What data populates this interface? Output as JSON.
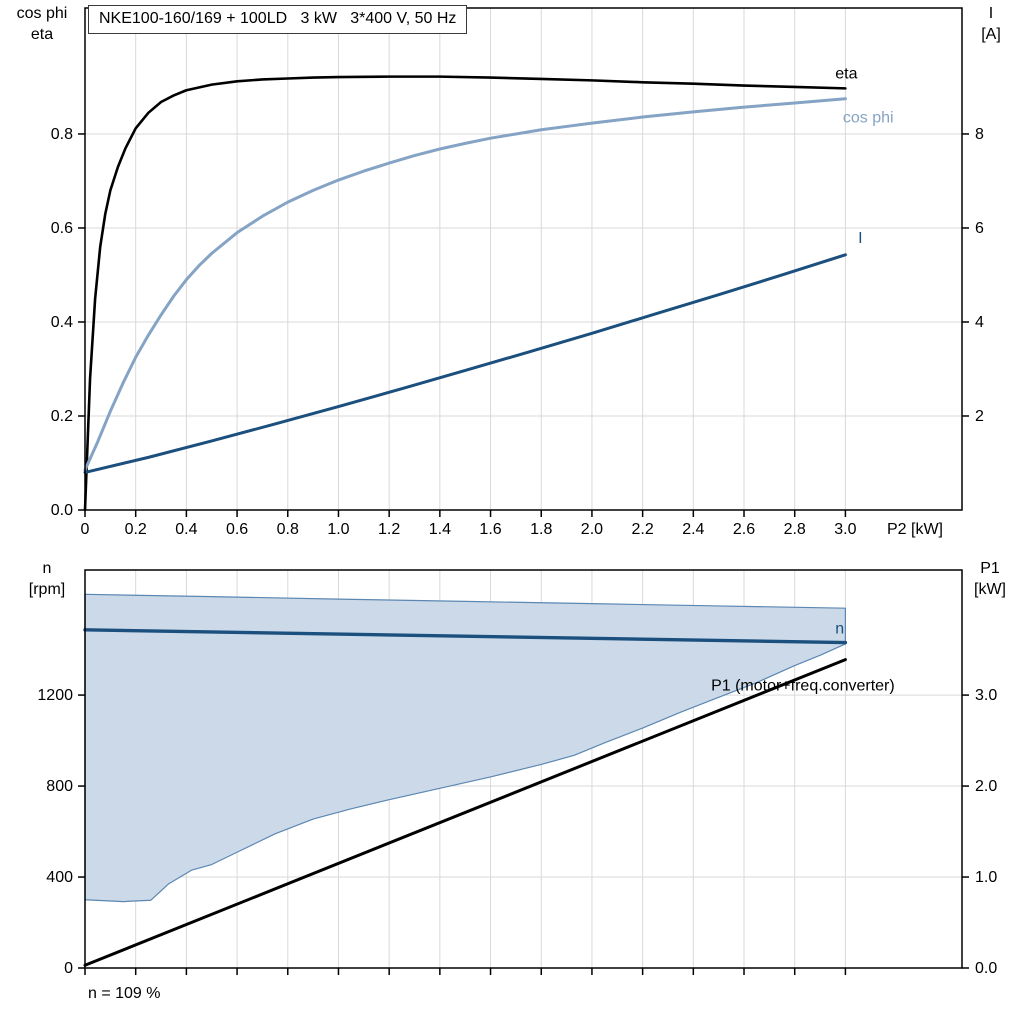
{
  "chart_data": [
    {
      "type": "line",
      "title": "NKE100-160/169 + 100LD   3 kW   3*400 V, 50 Hz",
      "x_axis": {
        "title": "P2 [kW]",
        "min": 0,
        "max": 3.46,
        "ticks": [
          0,
          0.2,
          0.4,
          0.6,
          0.8,
          1.0,
          1.2,
          1.4,
          1.6,
          1.8,
          2.0,
          2.2,
          2.4,
          2.6,
          2.8,
          3.0
        ],
        "labels": [
          "0",
          "0.2",
          "0.4",
          "0.6",
          "0.8",
          "1.0",
          "1.2",
          "1.4",
          "1.6",
          "1.8",
          "2.0",
          "2.2",
          "2.4",
          "2.6",
          "2.8",
          "3.0"
        ]
      },
      "left_axis": {
        "label_lines": [
          "cos phi",
          "eta"
        ],
        "min": 0,
        "max": 1.068,
        "ticks": [
          0,
          0.2,
          0.4,
          0.6,
          0.8
        ],
        "labels": [
          "0.0",
          "0.2",
          "0.4",
          "0.6",
          "0.8"
        ]
      },
      "right_axis": {
        "label_lines": [
          "I",
          "[A]"
        ],
        "min": 0,
        "max": 10.68,
        "ticks": [
          2,
          4,
          6,
          8
        ],
        "labels": [
          "2",
          "4",
          "6",
          "8"
        ]
      },
      "grid": true,
      "series": [
        {
          "name": "eta",
          "color": "#000000",
          "width": 2.6,
          "axis": "left",
          "points": [
            [
              0,
              0
            ],
            [
              0.02,
              0.28
            ],
            [
              0.04,
              0.45
            ],
            [
              0.06,
              0.56
            ],
            [
              0.08,
              0.63
            ],
            [
              0.1,
              0.68
            ],
            [
              0.13,
              0.73
            ],
            [
              0.16,
              0.77
            ],
            [
              0.2,
              0.812
            ],
            [
              0.25,
              0.845
            ],
            [
              0.3,
              0.868
            ],
            [
              0.35,
              0.882
            ],
            [
              0.4,
              0.893
            ],
            [
              0.5,
              0.905
            ],
            [
              0.6,
              0.912
            ],
            [
              0.7,
              0.916
            ],
            [
              0.8,
              0.918
            ],
            [
              0.9,
              0.92
            ],
            [
              1.0,
              0.921
            ],
            [
              1.2,
              0.922
            ],
            [
              1.4,
              0.922
            ],
            [
              1.6,
              0.92
            ],
            [
              1.8,
              0.917
            ],
            [
              2.0,
              0.914
            ],
            [
              2.2,
              0.91
            ],
            [
              2.4,
              0.907
            ],
            [
              2.6,
              0.903
            ],
            [
              2.8,
              0.9
            ],
            [
              3.0,
              0.897
            ]
          ]
        },
        {
          "name": "cos phi",
          "color": "#85a3c4",
          "width": 3,
          "axis": "left",
          "points": [
            [
              0,
              0.085
            ],
            [
              0.05,
              0.145
            ],
            [
              0.1,
              0.21
            ],
            [
              0.15,
              0.27
            ],
            [
              0.2,
              0.325
            ],
            [
              0.25,
              0.372
            ],
            [
              0.3,
              0.415
            ],
            [
              0.35,
              0.455
            ],
            [
              0.4,
              0.49
            ],
            [
              0.45,
              0.52
            ],
            [
              0.5,
              0.546
            ],
            [
              0.6,
              0.59
            ],
            [
              0.7,
              0.625
            ],
            [
              0.8,
              0.655
            ],
            [
              0.9,
              0.68
            ],
            [
              1.0,
              0.702
            ],
            [
              1.1,
              0.721
            ],
            [
              1.2,
              0.738
            ],
            [
              1.3,
              0.754
            ],
            [
              1.4,
              0.768
            ],
            [
              1.5,
              0.78
            ],
            [
              1.6,
              0.791
            ],
            [
              1.7,
              0.8
            ],
            [
              1.8,
              0.809
            ],
            [
              1.9,
              0.816
            ],
            [
              2.0,
              0.823
            ],
            [
              2.2,
              0.836
            ],
            [
              2.4,
              0.847
            ],
            [
              2.6,
              0.857
            ],
            [
              2.8,
              0.866
            ],
            [
              3.0,
              0.875
            ]
          ]
        },
        {
          "name": "I",
          "color": "#1b4f7e",
          "width": 3,
          "axis": "right",
          "points": [
            [
              0,
              0.8
            ],
            [
              0.25,
              1.12
            ],
            [
              0.5,
              1.47
            ],
            [
              0.75,
              1.83
            ],
            [
              1.0,
              2.2
            ],
            [
              1.25,
              2.58
            ],
            [
              1.5,
              2.97
            ],
            [
              1.75,
              3.36
            ],
            [
              2.0,
              3.76
            ],
            [
              2.25,
              4.17
            ],
            [
              2.5,
              4.58
            ],
            [
              2.75,
              5.0
            ],
            [
              3.0,
              5.43
            ]
          ]
        }
      ],
      "annotations": [
        {
          "text": "eta",
          "x": 2.96,
          "y": 0.918,
          "axis": "left",
          "color": "#000000"
        },
        {
          "text": "cos phi",
          "x": 2.99,
          "y": 0.824,
          "axis": "left",
          "color": "#85a3c4"
        },
        {
          "text": "I",
          "x": 3.05,
          "y": 0.568,
          "axis": "left",
          "color": "#1b4f7e"
        }
      ]
    },
    {
      "type": "line",
      "note": "n = 109 %",
      "x_axis": {
        "title": "",
        "min": 0,
        "max": 3.46,
        "ticks": [
          0,
          0.2,
          0.4,
          0.6,
          0.8,
          1.0,
          1.2,
          1.4,
          1.6,
          1.8,
          2.0,
          2.2,
          2.4,
          2.6,
          2.8,
          3.0
        ],
        "labels": []
      },
      "left_axis": {
        "label_lines": [
          "n",
          "[rpm]"
        ],
        "min": 0,
        "max": 1750,
        "ticks": [
          0,
          400,
          800,
          1200
        ],
        "labels": [
          "0",
          "400",
          "800",
          "1200"
        ]
      },
      "right_axis": {
        "label_lines": [
          "P1",
          "[kW]"
        ],
        "min": 0,
        "max": 4.375,
        "ticks": [
          0,
          1,
          2,
          3
        ],
        "labels": [
          "0.0",
          "1.0",
          "2.0",
          "3.0"
        ]
      },
      "grid": true,
      "regions": [
        {
          "name": "speed-range",
          "axis": "left",
          "fill": "#ccd9e8",
          "stroke": "#5b87b2",
          "upper": [
            [
              0,
              1643
            ],
            [
              0.5,
              1633
            ],
            [
              1.0,
              1622
            ],
            [
              1.5,
              1612
            ],
            [
              2.0,
              1602
            ],
            [
              2.5,
              1592
            ],
            [
              3.0,
              1582
            ]
          ],
          "lower": [
            [
              0,
              300
            ],
            [
              0.15,
              292
            ],
            [
              0.26,
              298
            ],
            [
              0.33,
              370
            ],
            [
              0.42,
              430
            ],
            [
              0.5,
              455
            ],
            [
              0.62,
              520
            ],
            [
              0.75,
              590
            ],
            [
              0.9,
              655
            ],
            [
              1.05,
              700
            ],
            [
              1.2,
              740
            ],
            [
              1.4,
              790
            ],
            [
              1.6,
              840
            ],
            [
              1.8,
              895
            ],
            [
              1.93,
              935
            ],
            [
              2.05,
              990
            ],
            [
              2.2,
              1055
            ],
            [
              2.35,
              1125
            ],
            [
              2.5,
              1190
            ],
            [
              2.65,
              1255
            ],
            [
              2.8,
              1330
            ],
            [
              2.9,
              1375
            ],
            [
              3.0,
              1425
            ]
          ]
        }
      ],
      "series": [
        {
          "name": "n",
          "color": "#1b4f7e",
          "width": 3.4,
          "axis": "left",
          "points": [
            [
              0,
              1487
            ],
            [
              3.0,
              1431
            ]
          ]
        },
        {
          "name": "P1",
          "color": "#000000",
          "width": 3,
          "axis": "right",
          "points": [
            [
              0,
              0.03
            ],
            [
              3.0,
              3.39
            ]
          ]
        }
      ],
      "annotations": [
        {
          "text": "n",
          "x": 2.96,
          "y": 1470,
          "axis": "left",
          "color": "#1b4f7e"
        },
        {
          "text": "P1 (motor+freq.converter)",
          "x": 2.47,
          "y": 3.05,
          "axis": "right",
          "color": "#000000"
        }
      ]
    }
  ]
}
